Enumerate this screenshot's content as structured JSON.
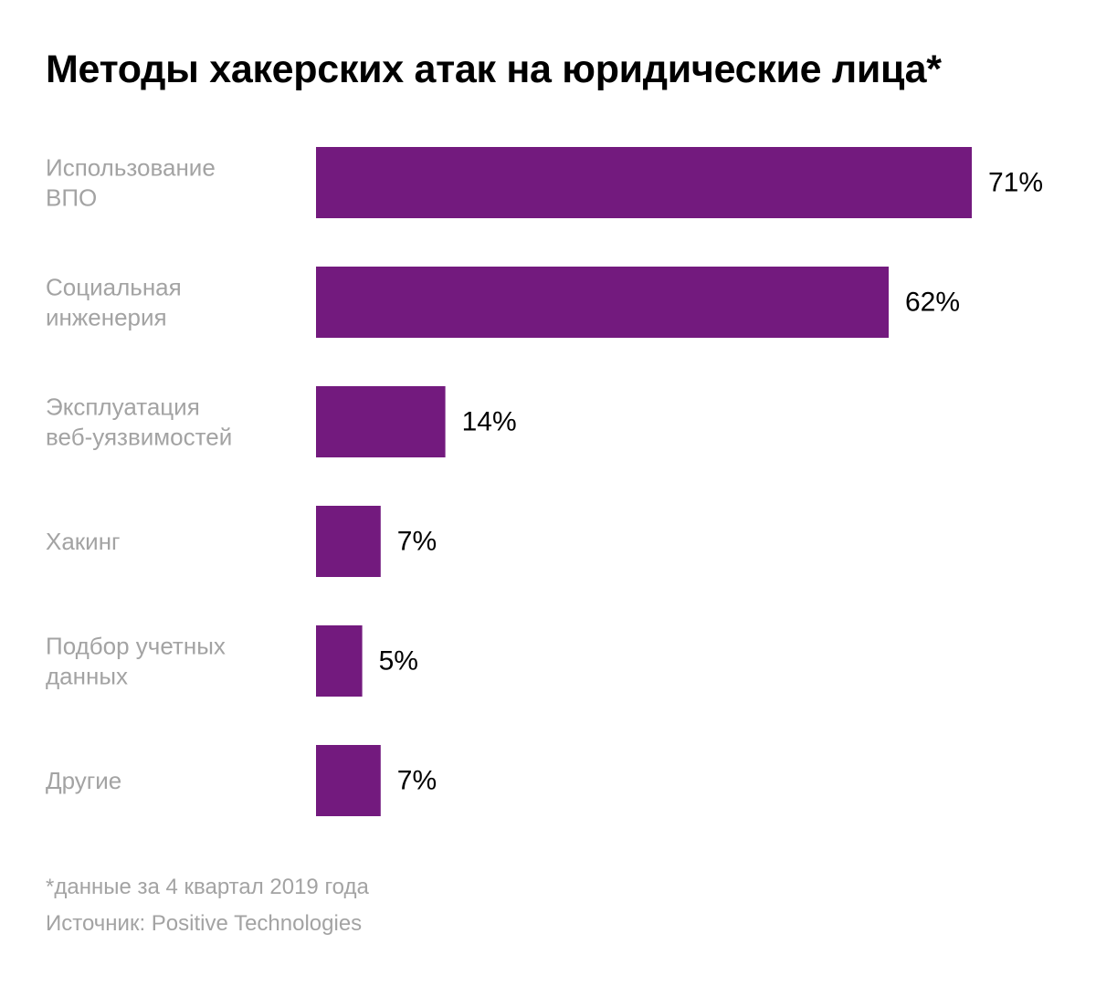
{
  "chart_data": {
    "type": "bar",
    "orientation": "horizontal",
    "title": "Методы хакерских атак на юридические лица*",
    "categories": [
      [
        "Использование",
        "ВПО"
      ],
      [
        "Социальная",
        "инженерия"
      ],
      [
        "Эксплуатация",
        "веб-уязвимостей"
      ],
      [
        "Хакинг"
      ],
      [
        "Подбор учетных",
        "данных"
      ],
      [
        "Другие"
      ]
    ],
    "values": [
      71,
      62,
      14,
      7,
      5,
      7
    ],
    "value_labels": [
      "71%",
      "62%",
      "14%",
      "7%",
      "5%",
      "7%"
    ],
    "unit": "%",
    "xlim": [
      0,
      71
    ],
    "xlabel": "",
    "ylabel": "",
    "grid": false,
    "legend": "none"
  },
  "footnote": "*данные за 4 квартал 2019 года",
  "source": "Источник: Positive Technologies",
  "colors": {
    "bar": "#731a7e",
    "category_text": "#a3a3a3",
    "value_text": "#000000",
    "title_text": "#000000"
  }
}
